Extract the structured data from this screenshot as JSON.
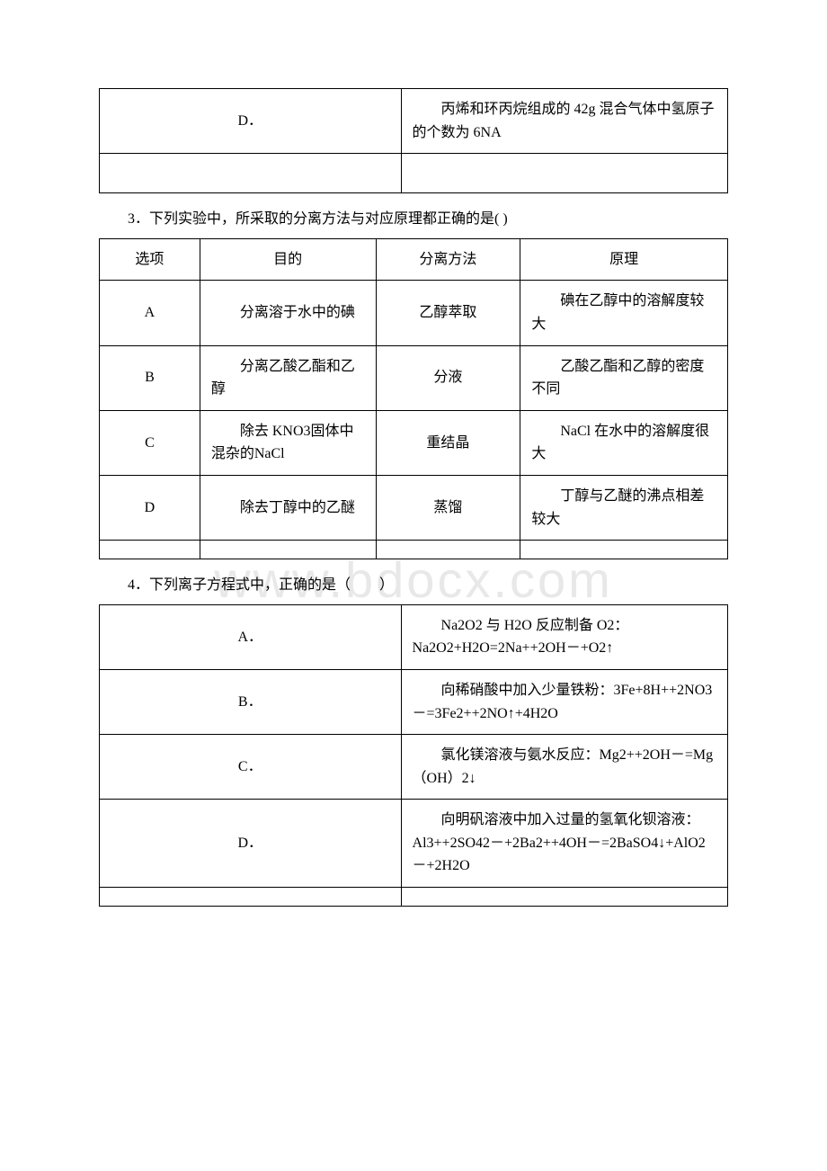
{
  "watermark": "www.bdocx.com",
  "table2_partial": {
    "row_option": "D．",
    "row_content": "　　丙烯和环丙烷组成的 42g 混合气体中氢原子的个数为 6NA"
  },
  "q3": {
    "text": "3．下列实验中，所采取的分离方法与对应原理都正确的是( )",
    "header": [
      "选项",
      "目的",
      "分离方法",
      "原理"
    ],
    "rows": [
      [
        "A",
        "　　分离溶于水中的碘",
        "乙醇萃取",
        "　　碘在乙醇中的溶解度较大"
      ],
      [
        "B",
        "　　分离乙酸乙酯和乙醇",
        "分液",
        "　　乙酸乙酯和乙醇的密度不同"
      ],
      [
        "C",
        "　　除去 KNO3固体中混杂的NaCl",
        "重结晶",
        "　　NaCl 在水中的溶解度很大"
      ],
      [
        "D",
        "　　除去丁醇中的乙醚",
        "蒸馏",
        "　　丁醇与乙醚的沸点相差较大"
      ]
    ]
  },
  "q4": {
    "text": "4．下列离子方程式中，正确的是（　　）",
    "rows": [
      [
        "A．",
        "　　Na2O2 与 H2O 反应制备 O2：Na2O2+H2O=2Na++2OH－+O2↑"
      ],
      [
        "B．",
        "　　向稀硝酸中加入少量铁粉：3Fe+8H++2NO3－=3Fe2++2NO↑+4H2O"
      ],
      [
        "C．",
        "　　氯化镁溶液与氨水反应：Mg2++2OH－=Mg（OH）2↓"
      ],
      [
        "D．",
        "　　向明矾溶液中加入过量的氢氧化钡溶液：Al3++2SO42－+2Ba2++4OH－=2BaSO4↓+AlO2－+2H2O"
      ]
    ]
  }
}
